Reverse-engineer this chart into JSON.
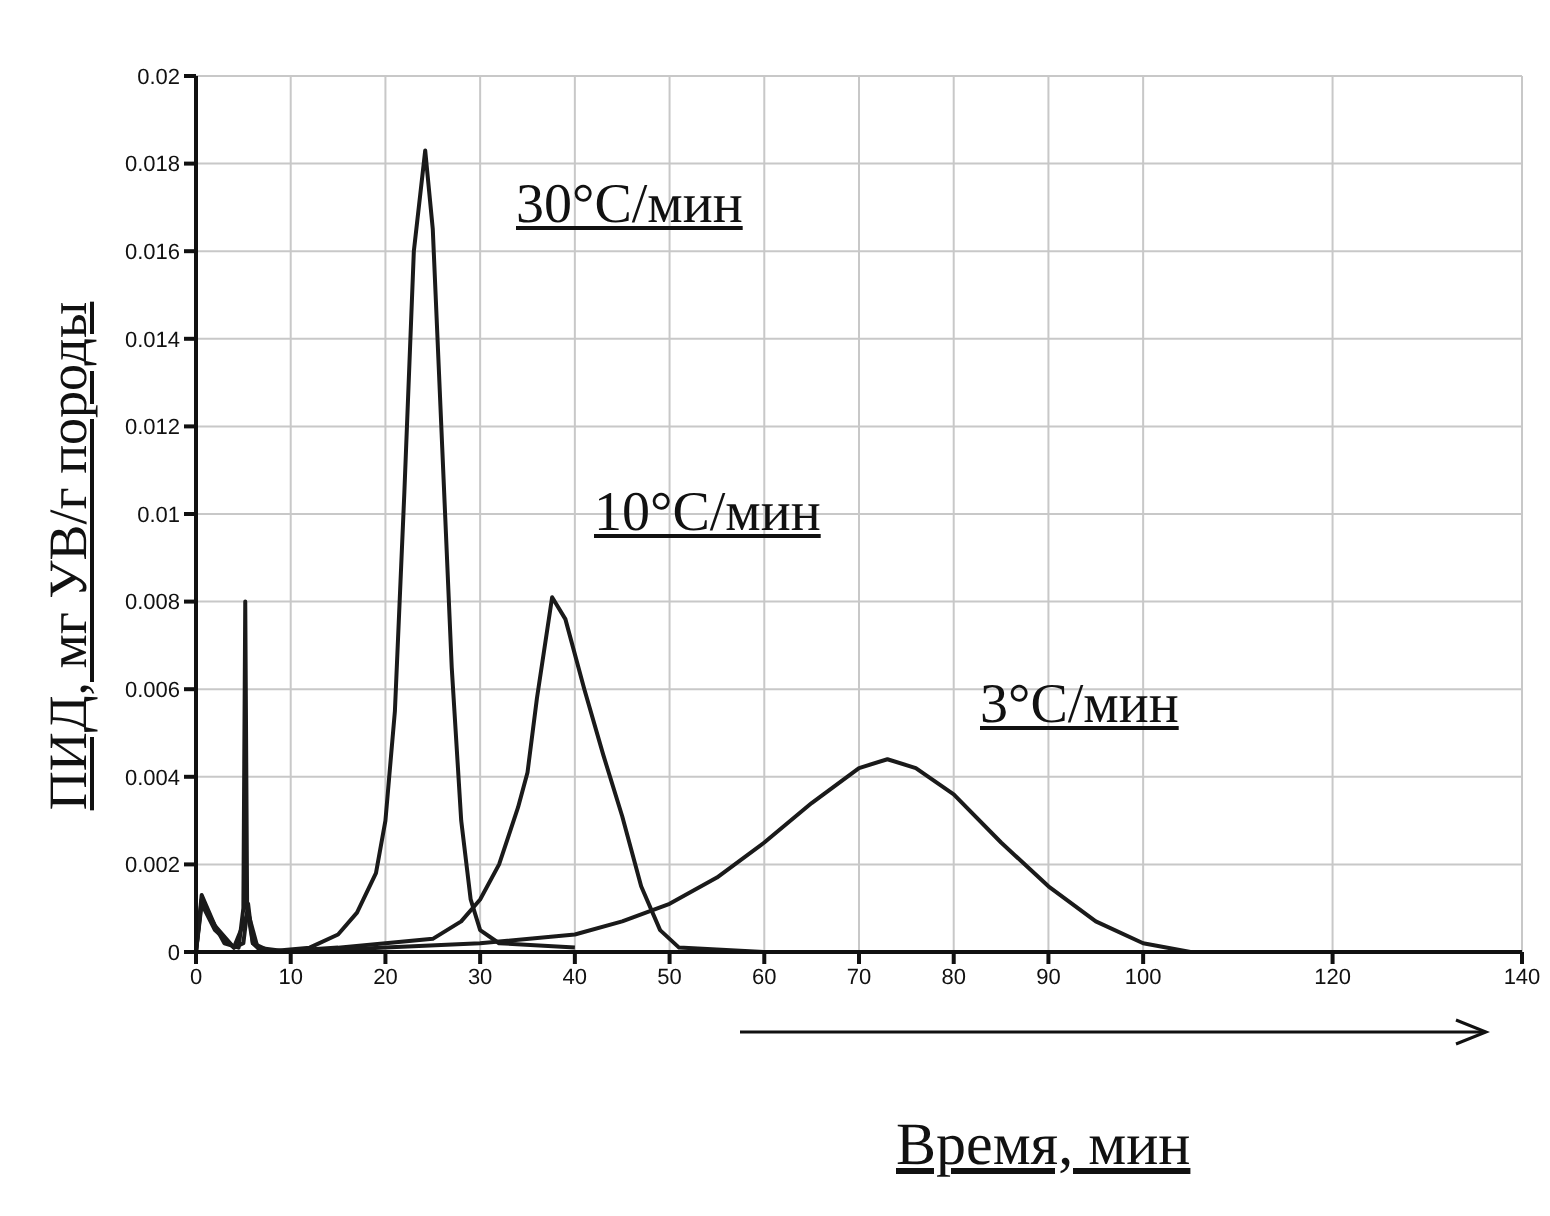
{
  "chart_data": {
    "type": "line",
    "xlabel": "Время, мин",
    "ylabel": "ПИД, мг УВ/г породы",
    "xlim": [
      0,
      140
    ],
    "xticks": [
      0,
      10,
      20,
      30,
      40,
      50,
      60,
      70,
      80,
      90,
      100,
      120,
      140
    ],
    "ylim": [
      0,
      0.02
    ],
    "yticks": [
      0,
      0.002,
      0.004,
      0.006,
      0.008,
      0.01,
      0.012,
      0.014,
      0.016,
      0.018,
      0.02
    ],
    "grid": true,
    "marker": "none",
    "line_style": "solid",
    "series": [
      {
        "color": "#1a1a1a",
        "x": [
          0,
          0.6,
          1.5,
          3,
          4.5,
          5,
          5.2,
          5.4,
          6,
          7,
          12,
          15,
          17,
          19,
          20,
          21,
          22,
          23,
          24.2,
          25,
          26,
          27,
          28,
          29,
          30,
          32,
          40
        ],
        "values": [
          0,
          0.0012,
          0.0008,
          0.0002,
          0.0001,
          0.001,
          0.008,
          0.001,
          0.0002,
          0,
          0.0001,
          0.0004,
          0.0009,
          0.0018,
          0.003,
          0.0055,
          0.0105,
          0.016,
          0.0183,
          0.0165,
          0.0115,
          0.0065,
          0.003,
          0.0012,
          0.0005,
          0.0002,
          0.0001
        ]
      },
      {
        "color": "#1a1a1a",
        "x": [
          0,
          0.6,
          2,
          4,
          5,
          5.5,
          6,
          8,
          15,
          20,
          25,
          28,
          30,
          32,
          34,
          35,
          36,
          37.6,
          39,
          41,
          43,
          45,
          47,
          49,
          51,
          60
        ],
        "values": [
          0,
          0.0013,
          0.0006,
          0.0001,
          0.0002,
          0.0011,
          0.0002,
          0,
          0.0001,
          0.0002,
          0.0003,
          0.0007,
          0.0012,
          0.002,
          0.0033,
          0.0041,
          0.0058,
          0.0081,
          0.0076,
          0.006,
          0.0045,
          0.0031,
          0.0015,
          0.0005,
          0.0001,
          0
        ]
      },
      {
        "color": "#1a1a1a",
        "x": [
          0,
          0.6,
          2,
          4,
          5.5,
          6.5,
          10,
          20,
          30,
          40,
          45,
          50,
          55,
          60,
          65,
          70,
          73,
          76,
          80,
          85,
          90,
          95,
          100,
          105,
          140
        ],
        "values": [
          0,
          0.0011,
          0.0005,
          0.0001,
          0.0009,
          0.0001,
          0,
          0.0001,
          0.0002,
          0.0004,
          0.0007,
          0.0011,
          0.0017,
          0.0025,
          0.0034,
          0.0042,
          0.0044,
          0.0042,
          0.0036,
          0.0025,
          0.0015,
          0.0007,
          0.0002,
          0,
          0
        ]
      }
    ],
    "annotations": [
      "30°C/мин",
      "10°C/мин",
      "3°C/мин"
    ]
  }
}
